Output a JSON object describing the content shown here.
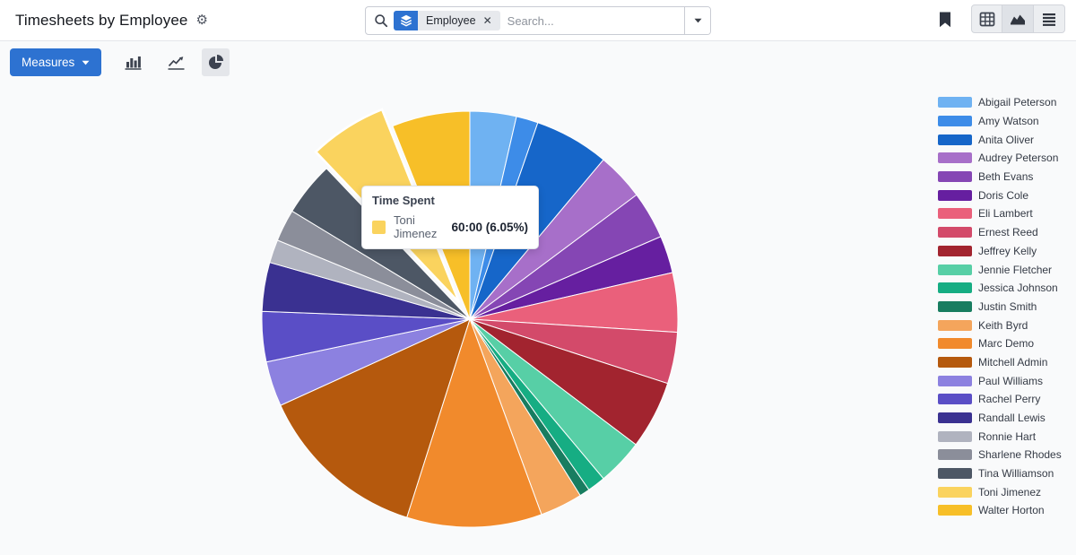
{
  "header": {
    "title": "Timesheets by Employee"
  },
  "search": {
    "facet": "Employee",
    "placeholder": "Search..."
  },
  "view_switcher": {
    "views": [
      "pivot",
      "graph",
      "list"
    ],
    "active": "graph"
  },
  "toolbar": {
    "measures": "Measures",
    "chart_types": [
      "bar",
      "line",
      "pie"
    ],
    "active_chart": "pie"
  },
  "tooltip": {
    "title": "Time Spent",
    "series_label": "Toni Jimenez",
    "value": "60:00 (6.05%)",
    "swatch_color": "#FAD35E"
  },
  "colors": {
    "accent": "#2D72D1",
    "icon": "#3E4450",
    "page_bg": "#F9FAFB"
  },
  "chart_data": {
    "type": "pie",
    "title": "Timesheets by Employee",
    "measure": "Time Spent",
    "legend_position": "right",
    "categories": [
      "Abigail Peterson",
      "Amy Watson",
      "Anita Oliver",
      "Audrey Peterson",
      "Beth Evans",
      "Doris Cole",
      "Eli Lambert",
      "Ernest Reed",
      "Jeffrey Kelly",
      "Jennie Fletcher",
      "Jessica Johnson",
      "Justin Smith",
      "Keith Byrd",
      "Marc Demo",
      "Mitchell Admin",
      "Paul Williams",
      "Rachel Perry",
      "Randall Lewis",
      "Ronnie Hart",
      "Sharlene Rhodes",
      "Tina Williamson",
      "Toni Jimenez",
      "Walter Horton"
    ],
    "values_percent": [
      3.6,
      1.7,
      5.8,
      3.7,
      3.7,
      2.9,
      4.6,
      4.0,
      5.3,
      3.6,
      1.4,
      0.8,
      3.3,
      10.5,
      13.3,
      3.5,
      3.9,
      3.8,
      1.8,
      2.5,
      4.2,
      6.05,
      6.05
    ],
    "colors": [
      "#6FB2F2",
      "#3D8CE8",
      "#1666C9",
      "#A76FC9",
      "#8546B4",
      "#661FA0",
      "#EA607B",
      "#D34A6A",
      "#A2242F",
      "#57CFA6",
      "#16AD83",
      "#187D60",
      "#F4A55C",
      "#F18A2C",
      "#B5590D",
      "#8C81E0",
      "#5A4EC6",
      "#3A3191",
      "#B0B3BF",
      "#8B8E9A",
      "#4D5765",
      "#FAD35E",
      "#F7BF28"
    ],
    "highlight": {
      "category": "Toni Jimenez",
      "display_value": "60:00",
      "percent": 6.05,
      "exploded": true
    }
  }
}
